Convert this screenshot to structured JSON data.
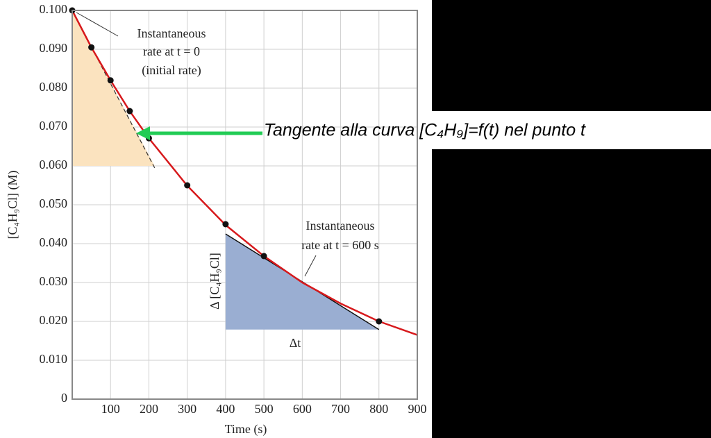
{
  "chart_data": {
    "type": "line",
    "x_label": "Time (s)",
    "y_label": "[C₄H₉Cl] (M)",
    "xlim": [
      0,
      900
    ],
    "ylim": [
      0,
      0.1
    ],
    "xticks": [
      100,
      200,
      300,
      400,
      500,
      600,
      700,
      800,
      900
    ],
    "yticks": [
      0,
      {
        "value": 0.01,
        "label": "0.010"
      },
      {
        "value": 0.02,
        "label": "0.020"
      },
      {
        "value": 0.03,
        "label": "0.030"
      },
      {
        "value": 0.04,
        "label": "0.040"
      },
      {
        "value": 0.05,
        "label": "0.050"
      },
      {
        "value": 0.06,
        "label": "0.060"
      },
      {
        "value": 0.07,
        "label": "0.070"
      },
      {
        "value": 0.08,
        "label": "0.080"
      },
      {
        "value": 0.09,
        "label": "0.090"
      },
      {
        "value": 0.1,
        "label": "0.100"
      }
    ],
    "grid": true,
    "curve": {
      "color": "#d7191c",
      "x": [
        0,
        50,
        100,
        150,
        200,
        300,
        400,
        500,
        600,
        700,
        800,
        900
      ],
      "y": [
        0.1,
        0.0905,
        0.082,
        0.0741,
        0.0671,
        0.0549,
        0.0448,
        0.0368,
        0.03,
        0.0246,
        0.02,
        0.0165
      ]
    },
    "points": {
      "color": "#111111",
      "x": [
        0,
        50,
        100,
        150,
        200,
        300,
        400,
        500,
        800
      ],
      "y": [
        0.1,
        0.0905,
        0.082,
        0.0741,
        0.0671,
        0.055,
        0.045,
        0.0368,
        0.02
      ]
    },
    "initial_triangle": {
      "color": "#fbe3bf",
      "x": [
        0,
        0,
        215
      ],
      "y": [
        0.1,
        0.06,
        0.06
      ]
    },
    "initial_tangent": {
      "x": [
        0,
        215
      ],
      "y": [
        0.1,
        0.0595
      ]
    },
    "t600_triangle": {
      "color": "#9aaed2",
      "x": [
        400,
        400,
        800
      ],
      "y": [
        0.0425,
        0.0179,
        0.0179
      ]
    },
    "t600_tangent": {
      "x": [
        400,
        800
      ],
      "y": [
        0.0425,
        0.0179
      ]
    },
    "annotations": {
      "initial_rate": [
        "Instantaneous",
        "rate at t = 0",
        "(initial rate)"
      ],
      "rate_600": [
        "Instantaneous",
        "rate at t = 600 s"
      ],
      "delta_conc": "Δ [C₄H₉Cl]",
      "delta_t": "Δt"
    },
    "overlay_text": "Tangente alla curva [C₄H₉]=f(t) nel punto t"
  }
}
